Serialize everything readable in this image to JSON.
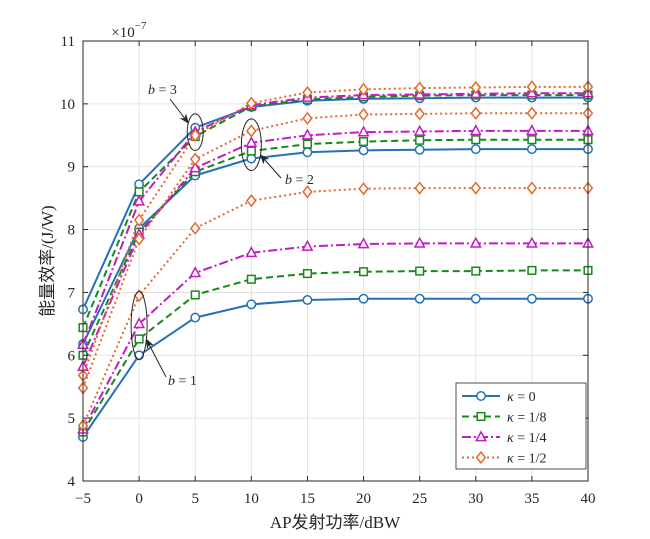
{
  "chart_data": {
    "type": "line",
    "xlabel": "AP发射功率/dBW",
    "ylabel": "能量效率/(J/W)",
    "y_multiplier": {
      "base": "×10",
      "exponent": "−7"
    },
    "x": [
      -5,
      0,
      5,
      10,
      15,
      20,
      25,
      30,
      35,
      40
    ],
    "xlim": [
      -5,
      40
    ],
    "ylim": [
      4,
      11
    ],
    "xticks": [
      -5,
      0,
      5,
      10,
      15,
      20,
      25,
      30,
      35,
      40
    ],
    "xtick_labels": [
      "−5",
      "0",
      "5",
      "10",
      "15",
      "20",
      "25",
      "30",
      "35",
      "40"
    ],
    "yticks": [
      4,
      5,
      6,
      7,
      8,
      9,
      10,
      11
    ],
    "ytick_labels": [
      "4",
      "5",
      "6",
      "7",
      "8",
      "9",
      "10",
      "11"
    ],
    "grid": true,
    "legend_position": "bottom-right",
    "series": [
      {
        "name": "κ = 0",
        "color": "#2571b8",
        "line_style": "solid",
        "marker": "circle",
        "curves": [
          {
            "b": 1,
            "values": [
              4.7,
              6.0,
              6.6,
              6.81,
              6.88,
              6.9,
              6.9,
              6.9,
              6.9,
              6.9
            ]
          },
          {
            "b": 2,
            "values": [
              6.18,
              8.02,
              8.86,
              9.13,
              9.23,
              9.26,
              9.27,
              9.28,
              9.28,
              9.28
            ]
          },
          {
            "b": 3,
            "values": [
              6.73,
              8.72,
              9.62,
              9.95,
              10.05,
              10.08,
              10.09,
              10.1,
              10.1,
              10.1
            ]
          }
        ]
      },
      {
        "name": "κ = 1/8",
        "color": "#17891a",
        "line_style": "dashed",
        "marker": "square",
        "curves": [
          {
            "b": 1,
            "values": [
              4.78,
              6.26,
              6.96,
              7.21,
              7.3,
              7.33,
              7.34,
              7.34,
              7.35,
              7.35
            ]
          },
          {
            "b": 2,
            "values": [
              6.0,
              7.96,
              8.92,
              9.25,
              9.36,
              9.4,
              9.42,
              9.43,
              9.43,
              9.43
            ]
          },
          {
            "b": 3,
            "values": [
              6.44,
              8.6,
              9.48,
              9.96,
              10.07,
              10.11,
              10.13,
              10.14,
              10.14,
              10.14
            ]
          }
        ]
      },
      {
        "name": "κ = 1/4",
        "color": "#c31ac3",
        "line_style": "dash-dot",
        "marker": "triangle",
        "curves": [
          {
            "b": 1,
            "values": [
              4.82,
              6.5,
              7.31,
              7.63,
              7.73,
              7.77,
              7.78,
              7.78,
              7.78,
              7.78
            ]
          },
          {
            "b": 2,
            "values": [
              5.82,
              7.92,
              8.98,
              9.38,
              9.5,
              9.55,
              9.56,
              9.57,
              9.57,
              9.57
            ]
          },
          {
            "b": 3,
            "values": [
              6.17,
              8.45,
              9.55,
              9.98,
              10.1,
              10.14,
              10.15,
              10.16,
              10.17,
              10.17
            ]
          }
        ]
      },
      {
        "name": "κ = 1/2",
        "color": "#e4692a",
        "line_style": "dotted",
        "marker": "diamond",
        "curves": [
          {
            "b": 1,
            "values": [
              4.88,
              6.95,
              8.02,
              8.46,
              8.6,
              8.65,
              8.66,
              8.66,
              8.66,
              8.66
            ]
          },
          {
            "b": 2,
            "values": [
              5.48,
              7.85,
              9.12,
              9.57,
              9.77,
              9.83,
              9.84,
              9.85,
              9.85,
              9.85
            ]
          },
          {
            "b": 3,
            "values": [
              5.68,
              8.15,
              9.5,
              10.01,
              10.18,
              10.23,
              10.25,
              10.26,
              10.27,
              10.27
            ]
          }
        ]
      }
    ],
    "annotations": [
      {
        "text": "b = 3",
        "b": 3,
        "x": 5
      },
      {
        "text": "b = 2",
        "b": 2,
        "x": 10
      },
      {
        "text": "b = 1",
        "b": 1,
        "x": 0
      }
    ]
  }
}
